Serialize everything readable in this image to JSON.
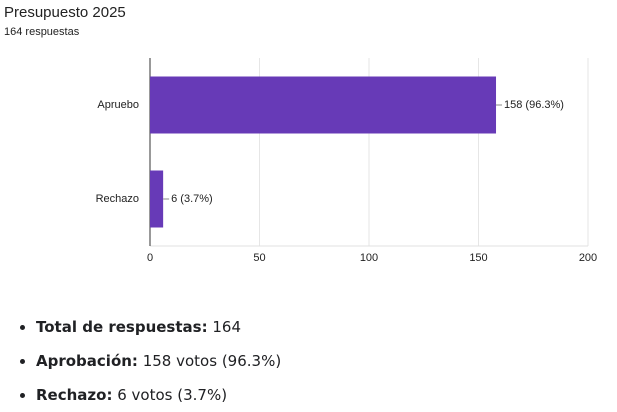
{
  "chart_data": {
    "type": "bar",
    "orientation": "horizontal",
    "title": "Presupuesto 2025",
    "subtitle": "164 respuestas",
    "categories": [
      "Apruebo",
      "Rechazo"
    ],
    "values": [
      158,
      6
    ],
    "value_labels": [
      "158 (96.3%)",
      "6 (3.7%)"
    ],
    "color": "#673ab7",
    "xlim": [
      0,
      200
    ],
    "xticks": [
      0,
      50,
      100,
      150,
      200
    ],
    "grid": true
  },
  "list": [
    {
      "label": "Total de respuestas:",
      "text": "164"
    },
    {
      "label": "Aprobación:",
      "text": "158 votos (96.3%)"
    },
    {
      "label": "Rechazo:",
      "text": "6 votos (3.7%)"
    }
  ]
}
